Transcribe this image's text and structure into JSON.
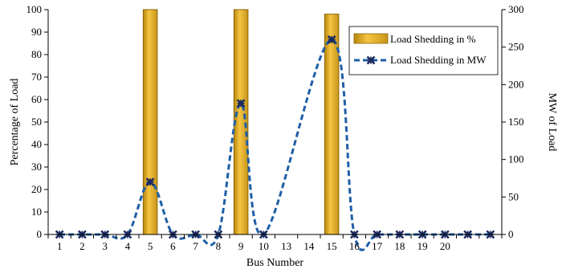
{
  "chart_data": {
    "type": "bar",
    "x": [
      1,
      2,
      3,
      4,
      5,
      6,
      7,
      8,
      9,
      10,
      11,
      12,
      13,
      14,
      15,
      16,
      17,
      18,
      19,
      20
    ],
    "tick_labels": [
      "1",
      "2",
      "3",
      "4",
      "5",
      "6",
      "7",
      "8",
      "9",
      "10",
      "13",
      "14",
      "15",
      "16",
      "17",
      "18",
      "19",
      "20"
    ],
    "xlabel": "Bus Number",
    "ylabel": "Percentage of Load",
    "y2label": "MW of Load",
    "ylim": [
      0,
      100
    ],
    "y2lim": [
      0,
      300
    ],
    "yticks": [
      "0",
      "10",
      "20",
      "30",
      "40",
      "50",
      "60",
      "70",
      "80",
      "90",
      "100"
    ],
    "y2ticks": [
      "0",
      "50",
      "100",
      "150",
      "200",
      "250",
      "300"
    ],
    "grid": false,
    "legend_position": "top-right",
    "series": [
      {
        "name": "Load Shedding in %",
        "type": "bar",
        "axis": "left",
        "color": "#DAA520",
        "x": [
          5,
          9,
          13
        ],
        "values": [
          100,
          100,
          98
        ]
      },
      {
        "name": "Load Shedding in MW",
        "type": "line",
        "axis": "right",
        "color": "#1F5FA6",
        "marker_color": "#1B2A5E",
        "x": [
          1,
          2,
          3,
          4,
          5,
          6,
          7,
          8,
          9,
          10,
          13,
          14,
          15,
          16,
          17,
          18,
          19,
          20
        ],
        "values": [
          0,
          0,
          0,
          0,
          70,
          0,
          0,
          0,
          175,
          0,
          260,
          0,
          0,
          0,
          0,
          0,
          0,
          0
        ]
      }
    ]
  }
}
